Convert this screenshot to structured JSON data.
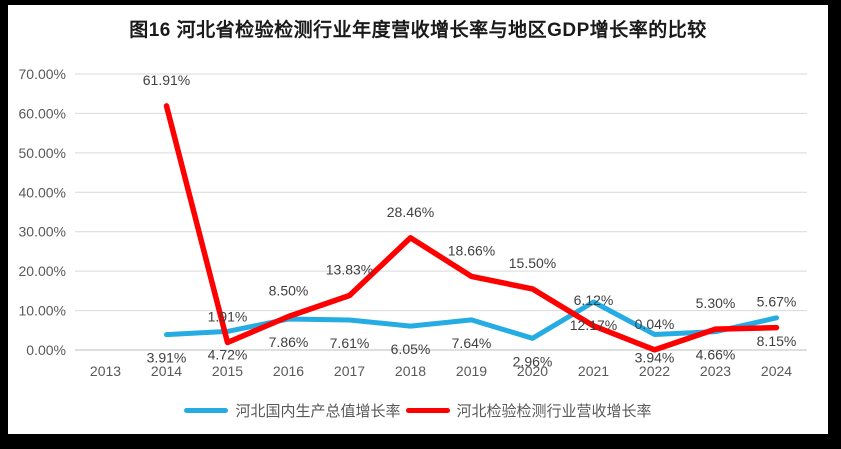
{
  "frame": {
    "border_color": "#000000",
    "background_color": "#ffffff"
  },
  "chart_data": {
    "type": "line",
    "title": "图16 河北省检验检测行业年度营收增长率与地区GDP增长率的比较",
    "categories": [
      "2013",
      "2014",
      "2015",
      "2016",
      "2017",
      "2018",
      "2019",
      "2020",
      "2021",
      "2022",
      "2023",
      "2024"
    ],
    "series": [
      {
        "name": "河北国内生产总值增长率",
        "color": "#25ACE2",
        "label_position": "below",
        "values": [
          null,
          3.91,
          4.72,
          7.86,
          7.61,
          6.05,
          7.64,
          2.96,
          12.17,
          3.94,
          4.66,
          8.15
        ]
      },
      {
        "name": "河北检验检测行业营收增长率",
        "color": "#FF0000",
        "label_position": "above",
        "values": [
          null,
          61.91,
          1.91,
          8.5,
          13.83,
          28.46,
          18.66,
          15.5,
          6.12,
          0.04,
          5.3,
          5.67
        ]
      }
    ],
    "xlabel": "",
    "ylabel": "",
    "ylim": [
      0,
      70
    ],
    "ytick_step": 10,
    "ytick_labels": [
      "0.00%",
      "10.00%",
      "20.00%",
      "30.00%",
      "40.00%",
      "50.00%",
      "60.00%",
      "70.00%"
    ],
    "value_label_suffix": "%",
    "grid": true,
    "legend_position": "bottom",
    "colors": {
      "gridline": "#d9d9d9",
      "axis_line": "#bfbfbf",
      "axis_label": "#595959",
      "data_label": "#404040",
      "title": "#1a1a1a"
    }
  }
}
